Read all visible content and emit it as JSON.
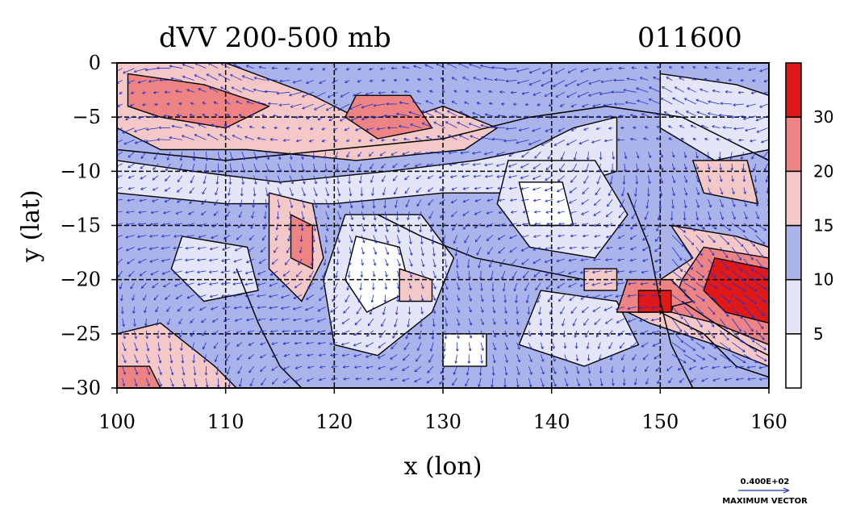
{
  "chart_data": {
    "type": "heatmap",
    "title": "dVV 200-500 mb",
    "time_label": "011600",
    "xlabel": "x (lon)",
    "ylabel": "y (lat)",
    "xlim": [
      100,
      160
    ],
    "ylim": [
      -30,
      0
    ],
    "x_ticks": [
      100,
      110,
      120,
      130,
      140,
      150,
      160
    ],
    "y_ticks": [
      0,
      -5,
      -10,
      -15,
      -20,
      -25,
      -30
    ],
    "grid": true,
    "colorbar": {
      "levels": [
        0,
        5,
        10,
        15,
        20,
        30
      ],
      "tick_labels": [
        "5",
        "10",
        "15",
        "20",
        "30"
      ],
      "colors": [
        "#ffffff",
        "#e4e6f7",
        "#aab3ea",
        "#f5c8c8",
        "#ee8383",
        "#e11818"
      ]
    },
    "vector_legend": {
      "value_label": "0.400E+02",
      "caption": "MAXIMUM VECTOR"
    }
  }
}
